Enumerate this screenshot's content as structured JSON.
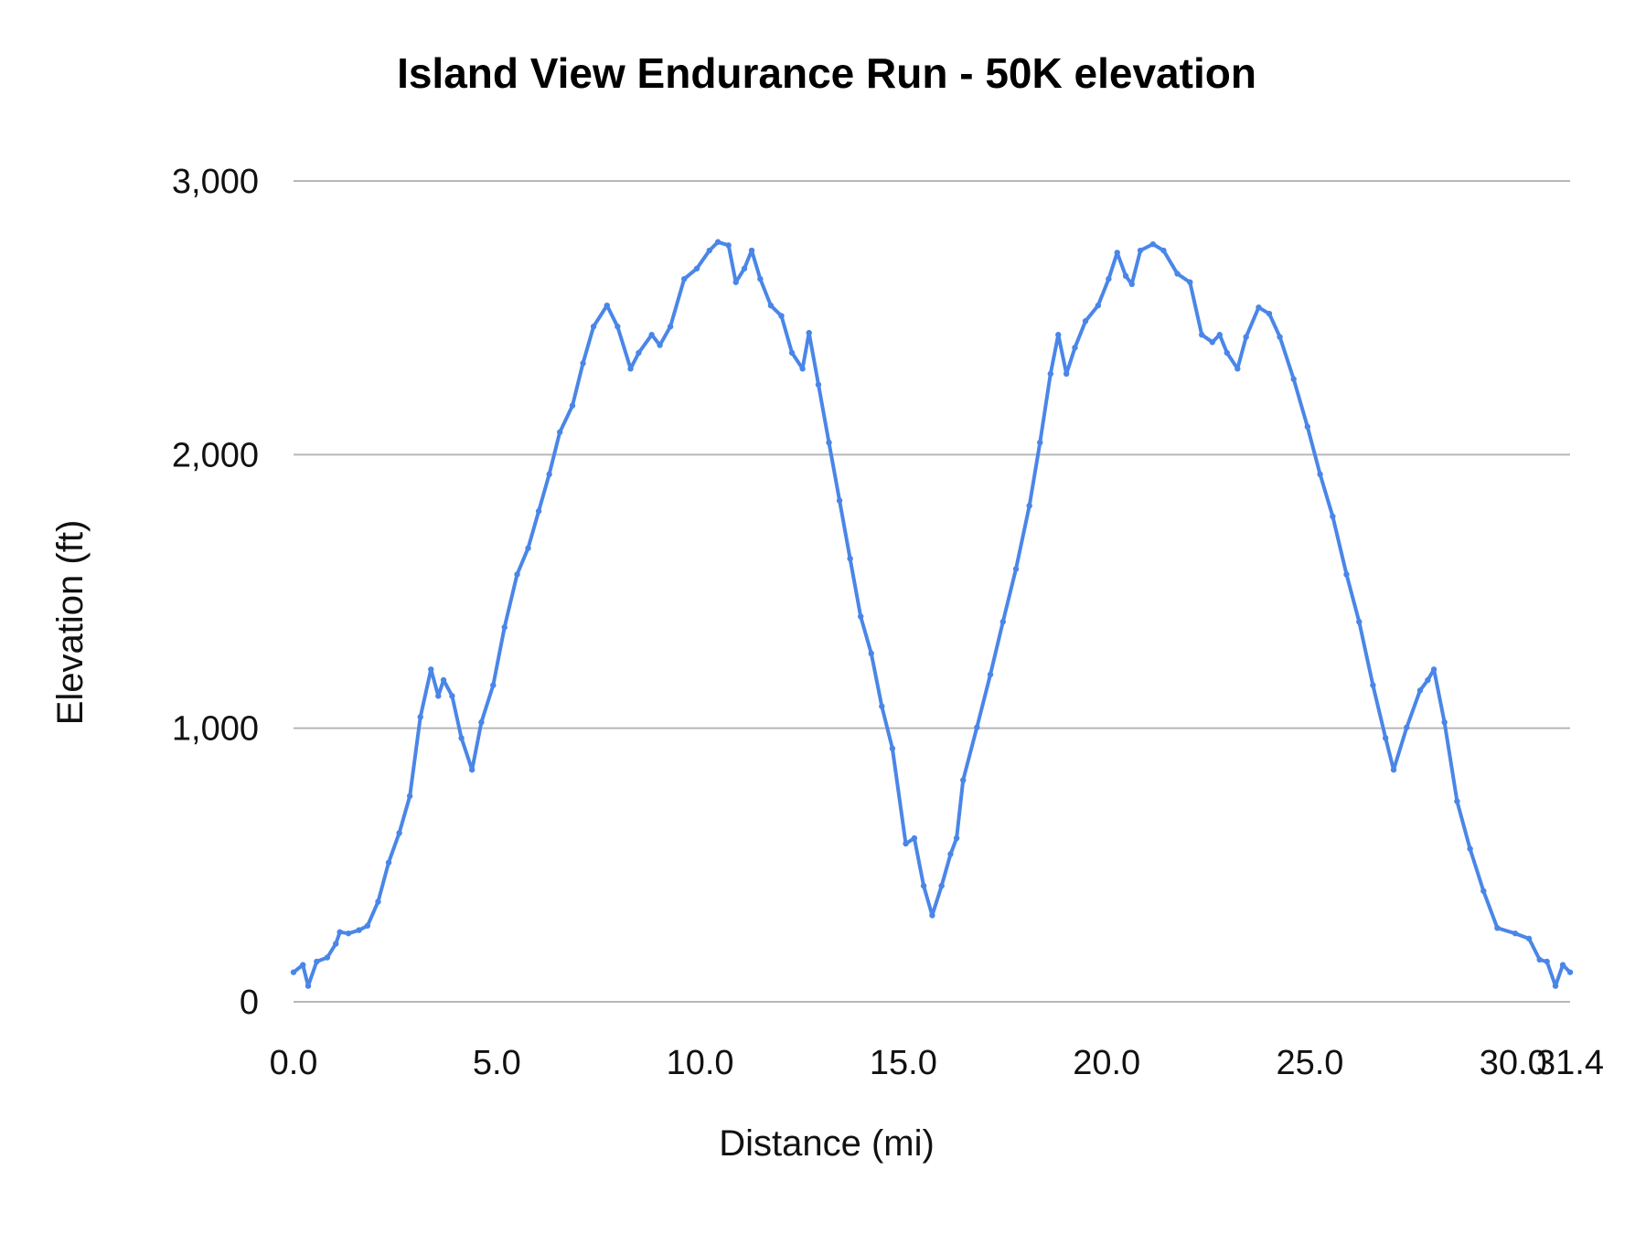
{
  "chart_data": {
    "type": "line",
    "title": "Island View Endurance Run - 50K elevation",
    "xlabel": "Distance (mi)",
    "ylabel": "Elevation (ft)",
    "xlim": [
      0,
      31.4
    ],
    "ylim": [
      0,
      3000
    ],
    "xticks": [
      "0.0",
      "5.0",
      "10.0",
      "15.0",
      "20.0",
      "25.0",
      "30.0",
      "31.4"
    ],
    "yticks": [
      "0",
      "1,000",
      "2,000",
      "3,000"
    ],
    "grid": true,
    "legend": "none",
    "series": [
      {
        "color": "#4a86e8",
        "x": [
          0,
          0.23,
          0.36,
          0.57,
          0.83,
          1.04,
          1.14,
          1.35,
          1.61,
          1.82,
          2.08,
          2.34,
          2.6,
          2.86,
          3.12,
          3.38,
          3.56,
          3.69,
          3.9,
          4.13,
          4.39,
          4.62,
          4.91,
          5.19,
          5.5,
          5.77,
          6.03,
          6.29,
          6.55,
          6.86,
          7.12,
          7.38,
          7.71,
          7.97,
          8.29,
          8.49,
          8.81,
          9.01,
          9.27,
          9.61,
          9.92,
          10.23,
          10.44,
          10.7,
          10.88,
          11.09,
          11.27,
          11.48,
          11.74,
          12.0,
          12.26,
          12.52,
          12.68,
          12.91,
          13.17,
          13.43,
          13.69,
          13.95,
          14.21,
          14.47,
          14.73,
          15.06,
          15.27,
          15.5,
          15.71,
          15.94,
          16.16,
          16.31,
          16.47,
          16.81,
          17.14,
          17.45,
          17.77,
          18.1,
          18.36,
          18.62,
          18.81,
          19.01,
          19.22,
          19.48,
          19.79,
          20.05,
          20.26,
          20.47,
          20.62,
          20.83,
          21.14,
          21.4,
          21.74,
          22.05,
          22.34,
          22.6,
          22.78,
          22.96,
          23.22,
          23.43,
          23.74,
          24.0,
          24.26,
          24.6,
          24.94,
          25.25,
          25.56,
          25.9,
          26.21,
          26.55,
          26.86,
          27.06,
          27.38,
          27.71,
          27.9,
          28.05,
          28.31,
          28.62,
          28.94,
          29.27,
          29.61,
          30.05,
          30.39,
          30.65,
          30.83,
          31.04,
          31.22,
          31.4
        ],
        "y": [
          108,
          135,
          58,
          147,
          162,
          212,
          255,
          250,
          262,
          278,
          366,
          509,
          617,
          752,
          1041,
          1215,
          1118,
          1176,
          1118,
          964,
          848,
          1022,
          1157,
          1369,
          1562,
          1658,
          1793,
          1928,
          2082,
          2179,
          2334,
          2468,
          2545,
          2468,
          2314,
          2372,
          2438,
          2400,
          2468,
          2642,
          2680,
          2746,
          2777,
          2765,
          2630,
          2680,
          2746,
          2642,
          2545,
          2507,
          2372,
          2314,
          2445,
          2256,
          2044,
          1832,
          1620,
          1408,
          1273,
          1080,
          926,
          578,
          598,
          424,
          316,
          424,
          540,
          598,
          810,
          1003,
          1196,
          1389,
          1582,
          1813,
          2044,
          2295,
          2438,
          2295,
          2391,
          2488,
          2545,
          2642,
          2738,
          2653,
          2623,
          2746,
          2769,
          2746,
          2661,
          2630,
          2438,
          2411,
          2438,
          2372,
          2314,
          2430,
          2538,
          2515,
          2430,
          2276,
          2102,
          1928,
          1774,
          1562,
          1389,
          1157,
          964,
          848,
          1003,
          1138,
          1176,
          1215,
          1022,
          733,
          559,
          405,
          270,
          250,
          231,
          154,
          147,
          58,
          135,
          108
        ]
      }
    ]
  }
}
